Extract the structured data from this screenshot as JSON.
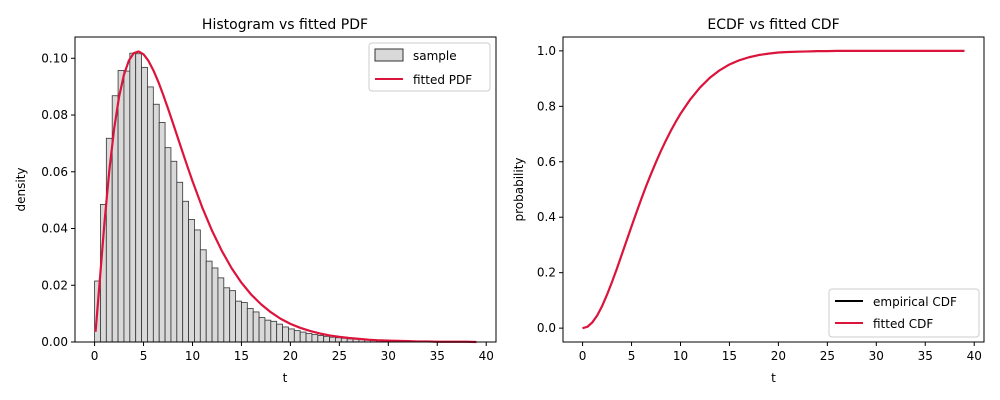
{
  "chart_data": [
    {
      "type": "bar",
      "title": "Histogram vs fitted PDF",
      "xlabel": "t",
      "ylabel": "density",
      "xlim": [
        -2.0,
        41.0
      ],
      "ylim": [
        0.0,
        0.1075
      ],
      "xticks": [
        0,
        5,
        10,
        15,
        20,
        25,
        30,
        35,
        40
      ],
      "xtick_labels": [
        "0",
        "5",
        "10",
        "15",
        "20",
        "25",
        "30",
        "35",
        "40"
      ],
      "yticks": [
        0.0,
        0.02,
        0.04,
        0.06,
        0.08,
        0.1
      ],
      "ytick_labels": [
        "0.00",
        "0.02",
        "0.04",
        "0.06",
        "0.08",
        "0.10"
      ],
      "grid": false,
      "legend_position": "top-right",
      "bin_width": 0.6,
      "bins_start": 0.0,
      "histogram_values": [
        0.0215,
        0.0485,
        0.0718,
        0.0868,
        0.0957,
        0.0955,
        0.1018,
        0.1016,
        0.0968,
        0.0899,
        0.0838,
        0.0774,
        0.0685,
        0.0637,
        0.0563,
        0.0496,
        0.0432,
        0.0395,
        0.0325,
        0.0285,
        0.0261,
        0.0226,
        0.0191,
        0.0181,
        0.0144,
        0.0139,
        0.0118,
        0.0106,
        0.0086,
        0.0077,
        0.0073,
        0.0063,
        0.0053,
        0.0046,
        0.004,
        0.0035,
        0.003,
        0.0026,
        0.0023,
        0.002,
        0.0017,
        0.0015,
        0.0013,
        0.0011,
        0.001,
        0.0009,
        0.0008,
        0.0007,
        0.0006,
        0.0005,
        0.0005,
        0.0004,
        0.0004,
        0.0003,
        0.0003
      ],
      "fitted_pdf": {
        "x": [
          0.1,
          0.5,
          1,
          1.5,
          2,
          2.5,
          3,
          3.5,
          4,
          4.5,
          5,
          5.5,
          6,
          6.5,
          7,
          7.5,
          8,
          8.5,
          9,
          9.5,
          10,
          11,
          12,
          13,
          14,
          15,
          16,
          17,
          18,
          19,
          20,
          21,
          22,
          23,
          24,
          25,
          26,
          27,
          28,
          29,
          30,
          31,
          32,
          33,
          34,
          35,
          36,
          37,
          38,
          39
        ],
        "y": [
          0.0036,
          0.0203,
          0.0417,
          0.0603,
          0.0752,
          0.0864,
          0.0942,
          0.0992,
          0.1018,
          0.1024,
          0.1014,
          0.0991,
          0.0958,
          0.0918,
          0.0872,
          0.0823,
          0.0772,
          0.072,
          0.0668,
          0.0617,
          0.0567,
          0.0474,
          0.0392,
          0.0321,
          0.026,
          0.0209,
          0.0167,
          0.0133,
          0.0105,
          0.0082,
          0.0064,
          0.005,
          0.0039,
          0.003,
          0.0023,
          0.0018,
          0.0014,
          0.0011,
          0.0008,
          0.0006,
          0.0005,
          0.0004,
          0.0003,
          0.0002,
          0.0002,
          0.0001,
          0.0001,
          0.0001,
          0.0001,
          0.0
        ]
      },
      "legend": [
        {
          "label": "sample",
          "kind": "patch"
        },
        {
          "label": "fitted PDF",
          "kind": "line"
        }
      ]
    },
    {
      "type": "line",
      "title": "ECDF vs fitted CDF",
      "xlabel": "t",
      "ylabel": "probability",
      "xlim": [
        -2.0,
        41.0
      ],
      "ylim": [
        -0.05,
        1.05
      ],
      "xticks": [
        0,
        5,
        10,
        15,
        20,
        25,
        30,
        35,
        40
      ],
      "xtick_labels": [
        "0",
        "5",
        "10",
        "15",
        "20",
        "25",
        "30",
        "35",
        "40"
      ],
      "yticks": [
        0.0,
        0.2,
        0.4,
        0.6,
        0.8,
        1.0
      ],
      "ytick_labels": [
        "0.0",
        "0.2",
        "0.4",
        "0.6",
        "0.8",
        "1.0"
      ],
      "grid": false,
      "legend_position": "bottom-right",
      "series": [
        {
          "name": "empirical CDF",
          "x": [
            0,
            0.5,
            1,
            1.5,
            2,
            2.5,
            3,
            3.5,
            4,
            4.5,
            5,
            5.5,
            6,
            6.5,
            7,
            7.5,
            8,
            8.5,
            9,
            9.5,
            10,
            11,
            12,
            13,
            14,
            15,
            16,
            17,
            18,
            19,
            20,
            21,
            22,
            23,
            24,
            25,
            26,
            27,
            28,
            29,
            30,
            31,
            32,
            33,
            34,
            35,
            36,
            37,
            38,
            39
          ],
          "y": [
            0.0,
            0.005,
            0.021,
            0.046,
            0.08,
            0.121,
            0.166,
            0.214,
            0.265,
            0.316,
            0.367,
            0.417,
            0.466,
            0.513,
            0.557,
            0.599,
            0.639,
            0.676,
            0.711,
            0.743,
            0.773,
            0.825,
            0.868,
            0.903,
            0.93,
            0.951,
            0.966,
            0.977,
            0.985,
            0.99,
            0.994,
            0.996,
            0.997,
            0.998,
            0.999,
            0.999,
            1.0,
            1.0,
            1.0,
            1.0,
            1.0,
            1.0,
            1.0,
            1.0,
            1.0,
            1.0,
            1.0,
            1.0,
            1.0,
            1.0
          ]
        },
        {
          "name": "fitted CDF",
          "x": [
            0,
            0.5,
            1,
            1.5,
            2,
            2.5,
            3,
            3.5,
            4,
            4.5,
            5,
            5.5,
            6,
            6.5,
            7,
            7.5,
            8,
            8.5,
            9,
            9.5,
            10,
            11,
            12,
            13,
            14,
            15,
            16,
            17,
            18,
            19,
            20,
            21,
            22,
            23,
            24,
            25,
            26,
            27,
            28,
            29,
            30,
            31,
            32,
            33,
            34,
            35,
            36,
            37,
            38,
            39
          ],
          "y": [
            0.0,
            0.005,
            0.021,
            0.046,
            0.08,
            0.121,
            0.166,
            0.214,
            0.265,
            0.316,
            0.367,
            0.417,
            0.466,
            0.513,
            0.557,
            0.599,
            0.639,
            0.676,
            0.711,
            0.743,
            0.773,
            0.825,
            0.868,
            0.903,
            0.93,
            0.951,
            0.966,
            0.977,
            0.985,
            0.99,
            0.994,
            0.996,
            0.997,
            0.998,
            0.999,
            0.999,
            1.0,
            1.0,
            1.0,
            1.0,
            1.0,
            1.0,
            1.0,
            1.0,
            1.0,
            1.0,
            1.0,
            1.0,
            1.0,
            1.0
          ]
        }
      ],
      "legend": [
        {
          "label": "empirical CDF",
          "kind": "line"
        },
        {
          "label": "fitted CDF",
          "kind": "line"
        }
      ]
    }
  ],
  "colors": {
    "bar_fill": "#d9d9d9",
    "bar_edge": "#333333",
    "fit_line": "#dc143c",
    "ecdf_line": "#000000",
    "axis": "#000000"
  }
}
